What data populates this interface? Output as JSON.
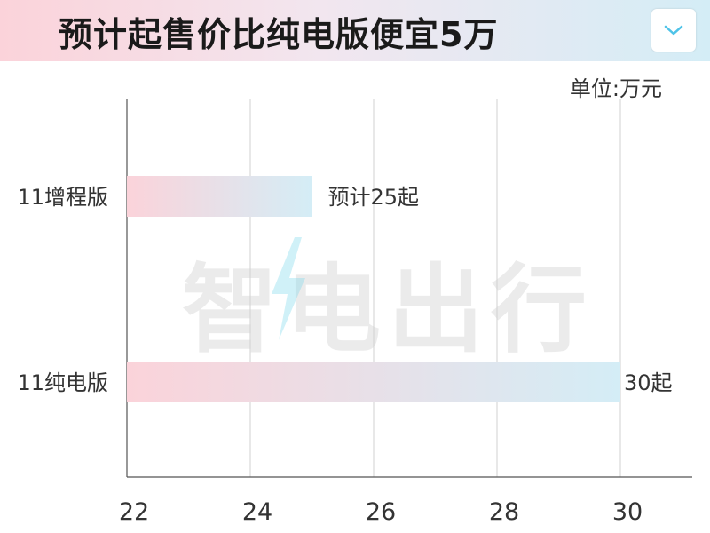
{
  "header": {
    "title": "预计起售价比纯电版便宜5万"
  },
  "watermark": "智电出行",
  "chart_data": {
    "type": "bar",
    "orientation": "horizontal",
    "unit_label": "单位:万元",
    "categories": [
      "11增程版",
      "11纯电版"
    ],
    "values": [
      25,
      30
    ],
    "data_labels": [
      "预计25起",
      "30起"
    ],
    "xlim": [
      22,
      31.5
    ],
    "x_ticks": [
      22,
      24,
      26,
      28,
      30
    ],
    "grid": "vertical",
    "bar_gradient": [
      "#fbd3da",
      "#d4edf6"
    ]
  }
}
